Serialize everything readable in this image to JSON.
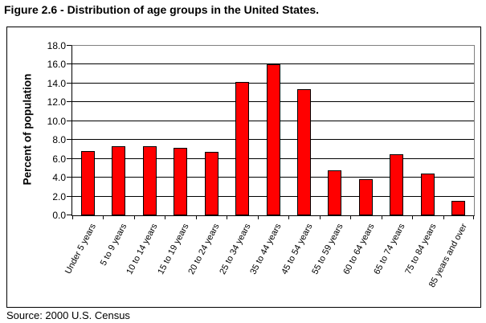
{
  "title": "Figure 2.6 - Distribution of age groups in the United States.",
  "source": "Source: 2000 U.S. Census",
  "colors": {
    "bar_fill": "#FF0000",
    "bar_border": "#000000",
    "gridline": "#000000",
    "plot_border": "#808080",
    "axis": "#000000"
  },
  "chart_data": {
    "type": "bar",
    "title": "Figure 2.6 - Distribution of age groups in the United States.",
    "xlabel": "",
    "ylabel": "Percent of population",
    "ylim": [
      0,
      18
    ],
    "ytick_step": 2,
    "ytick_decimals": 1,
    "grid": true,
    "legend": false,
    "categories": [
      "Under 5 years",
      "5 to 9 years",
      "10 to 14 years",
      "15 to 19 years",
      "20 to 24 years",
      "25 to 34 years",
      "35 to 44 years",
      "45 to 54 years",
      "55 to 59 years",
      "60 to 64 years",
      "65 to 74 years",
      "75 to 84 years",
      "85 years and over"
    ],
    "values": [
      6.8,
      7.3,
      7.3,
      7.2,
      6.7,
      14.2,
      16.0,
      13.4,
      4.8,
      3.8,
      6.5,
      4.4,
      1.5
    ]
  }
}
